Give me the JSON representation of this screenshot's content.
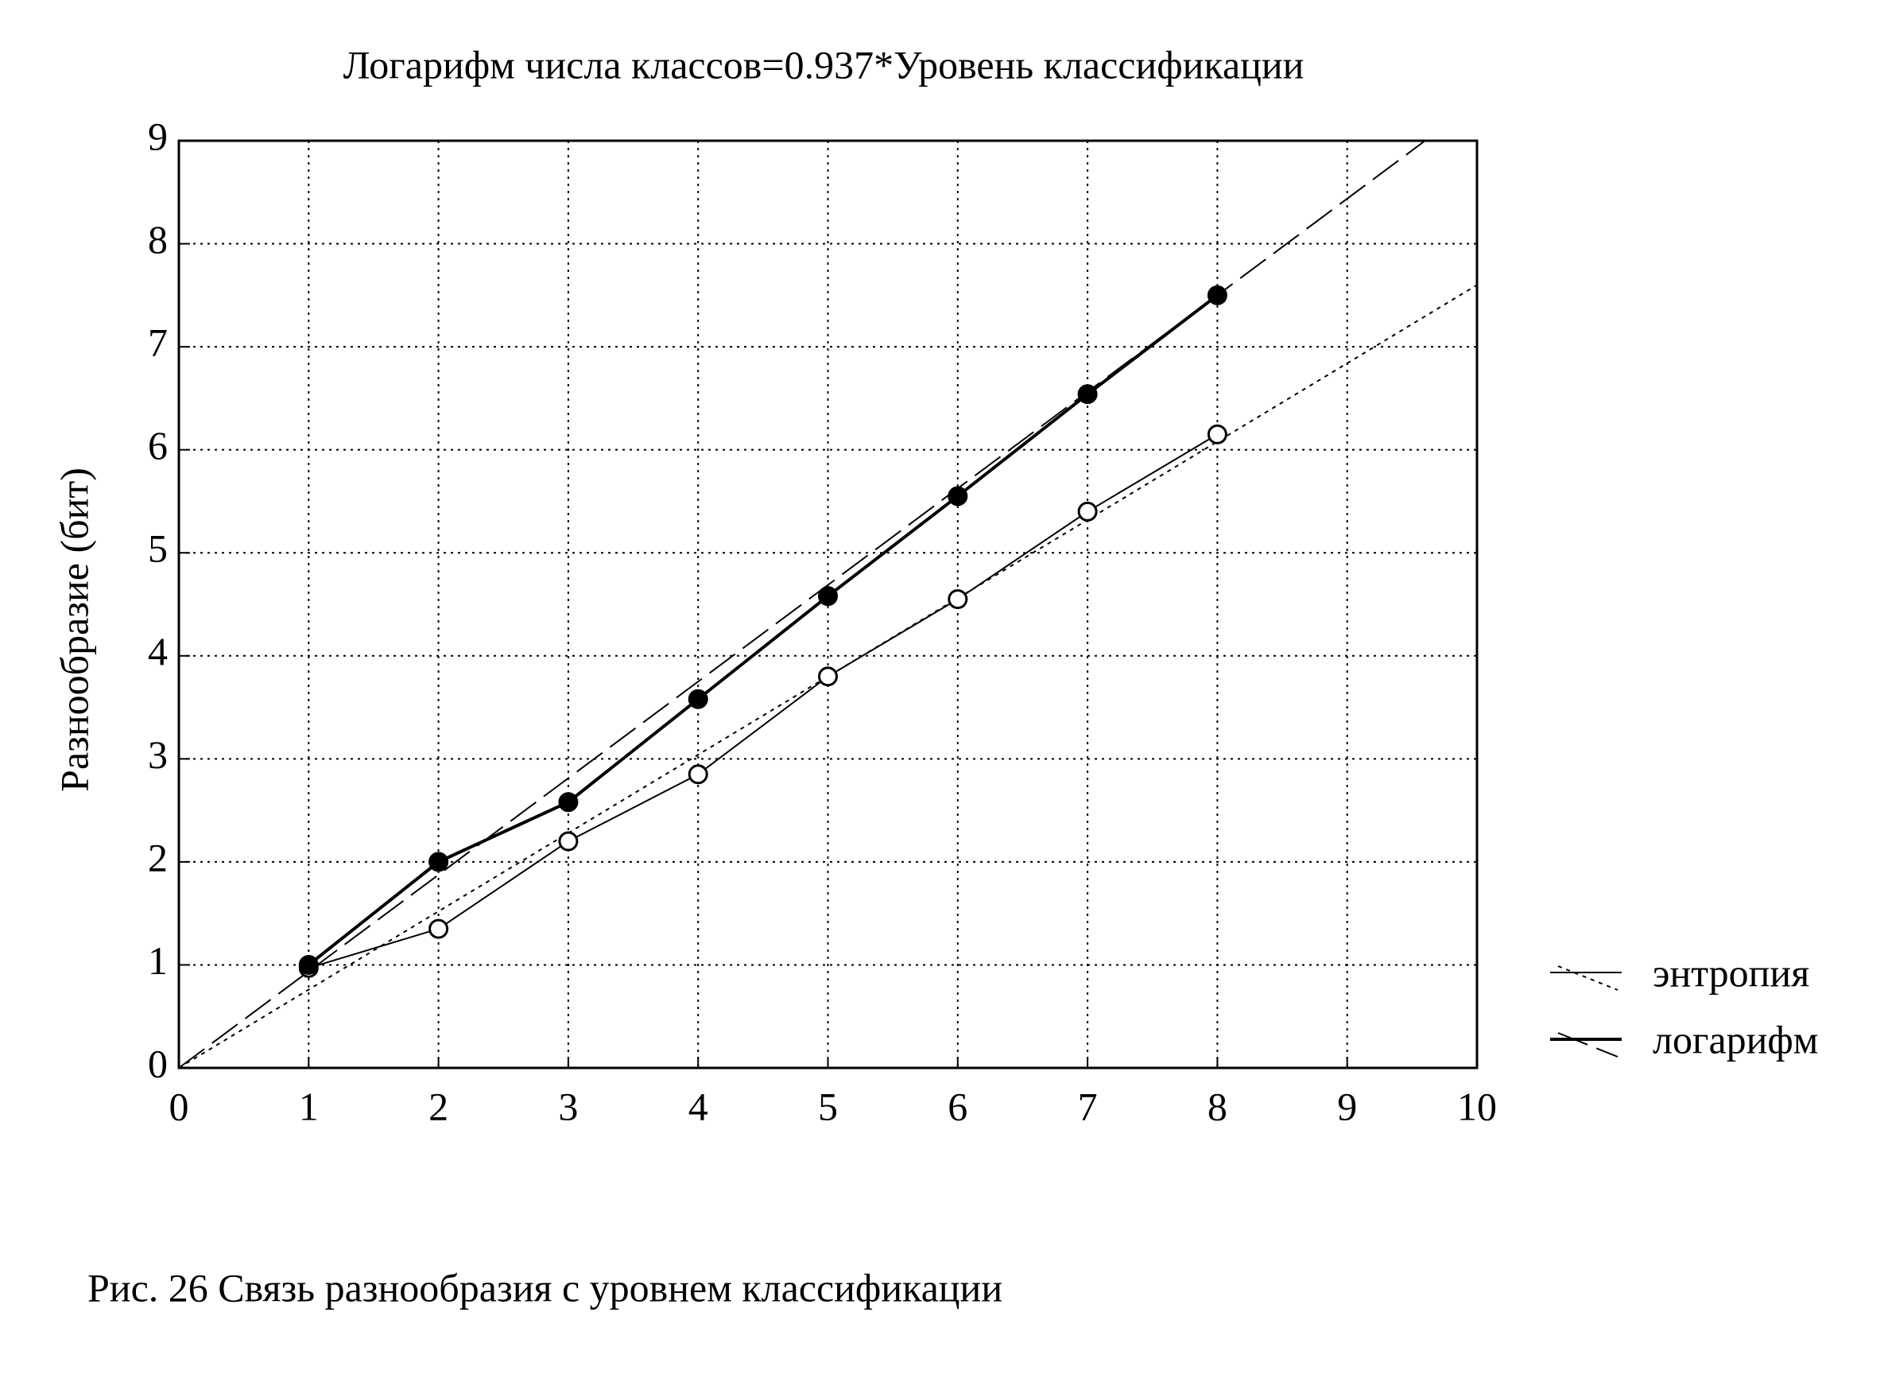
{
  "chart_data": {
    "type": "line",
    "title": "Логарифм числа классов=0.937*Уровень классификации",
    "y_label": "Разнообразие (бит)",
    "caption": "Рис. 26  Связь разнообразия с уровнем классификации",
    "xlim": [
      0,
      10
    ],
    "xticks": [
      0,
      1,
      2,
      3,
      4,
      5,
      6,
      7,
      8,
      9,
      10
    ],
    "ylim": [
      0,
      9
    ],
    "yticks": [
      0,
      1,
      2,
      3,
      4,
      5,
      6,
      7,
      8,
      9
    ],
    "grid": true,
    "legend": "right",
    "series": [
      {
        "name": "энтропия",
        "color": "#000000",
        "marker": "open",
        "line_width": 2,
        "x": [
          1,
          2,
          3,
          4,
          5,
          6,
          7,
          8
        ],
        "values": [
          0.97,
          1.35,
          2.2,
          2.85,
          3.8,
          4.55,
          5.4,
          6.15
        ],
        "trend": {
          "style": "dotted",
          "x": [
            0,
            10
          ],
          "values": [
            0,
            7.6
          ]
        }
      },
      {
        "name": "логарифм",
        "color": "#000000",
        "marker": "filled",
        "line_width": 4,
        "x": [
          1,
          2,
          3,
          4,
          5,
          6,
          7,
          8
        ],
        "values": [
          1.0,
          2.0,
          2.58,
          3.58,
          4.58,
          5.55,
          6.54,
          7.5
        ],
        "trend": {
          "style": "dashed",
          "x": [
            0,
            9.6
          ],
          "values": [
            0,
            9
          ]
        }
      }
    ]
  }
}
